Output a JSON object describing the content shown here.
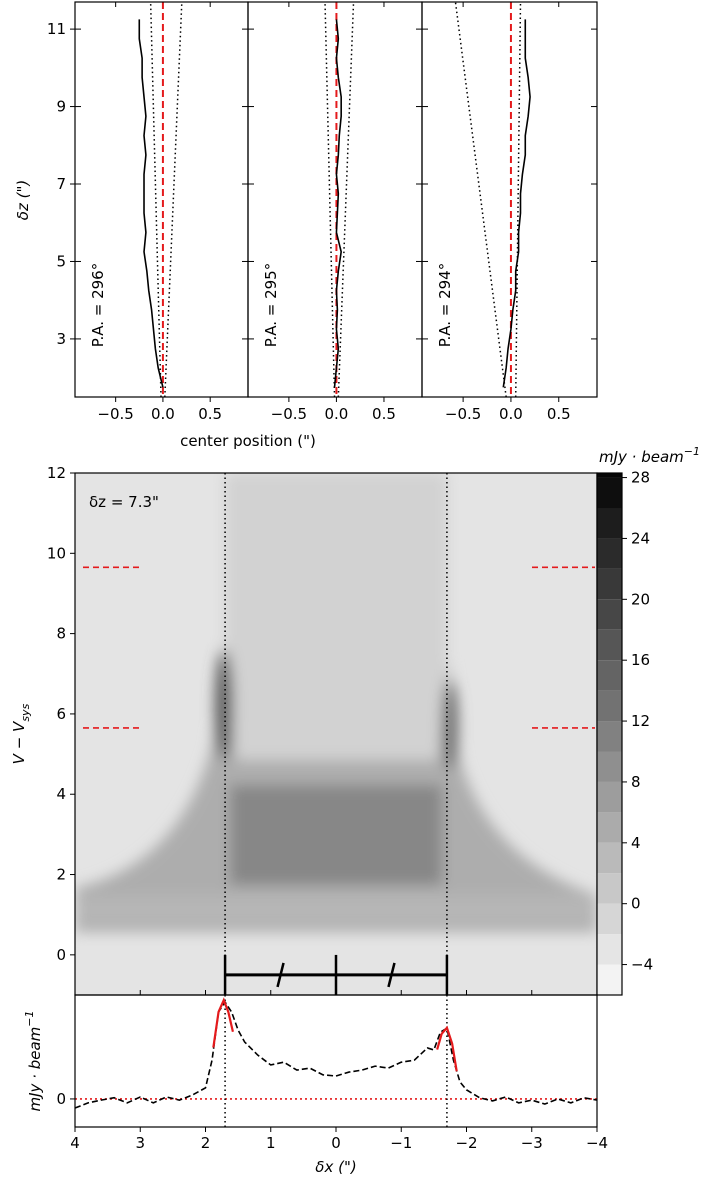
{
  "chart_data": [
    {
      "type": "line",
      "annotation": "P.A. = 296°",
      "ylabel": "δz (\")",
      "xlim": [
        -0.93,
        0.9
      ],
      "xticks": [
        {
          "value": -0.5,
          "label": "−0.5"
        },
        {
          "value": 0,
          "label": "0.0"
        },
        0.5
      ],
      "ylim": [
        1.5,
        11.7
      ],
      "yticks": [
        3,
        5,
        7,
        9,
        11
      ],
      "reference_x": 0,
      "reference_color": "#e41a1c",
      "bounds": [
        [
          -0.02,
          -0.13
        ],
        [
          0.02,
          0.2
        ]
      ],
      "series": [
        {
          "color": "#000000",
          "z": [
            1.75,
            2.25,
            2.75,
            3.25,
            3.75,
            4.25,
            4.75,
            5.25,
            5.75,
            6.25,
            6.75,
            7.25,
            7.75,
            8.25,
            8.75,
            9.25,
            9.75,
            10.25,
            10.75,
            11.25
          ],
          "values": [
            0.0,
            -0.05,
            -0.08,
            -0.1,
            -0.12,
            -0.15,
            -0.17,
            -0.2,
            -0.18,
            -0.2,
            -0.2,
            -0.2,
            -0.18,
            -0.2,
            -0.18,
            -0.2,
            -0.22,
            -0.22,
            -0.25,
            -0.25
          ]
        }
      ]
    },
    {
      "type": "line",
      "annotation": "P.A. = 295°",
      "xlabel": "center position (\")",
      "xlim": [
        -0.93,
        0.9
      ],
      "xticks": [
        {
          "value": -0.5,
          "label": "−0.5"
        },
        {
          "value": 0,
          "label": "0.0"
        },
        0.5
      ],
      "ylim": [
        1.5,
        11.7
      ],
      "reference_x": 0,
      "reference_color": "#e41a1c",
      "bounds": [
        [
          -0.02,
          -0.12
        ],
        [
          0.02,
          0.18
        ]
      ],
      "series": [
        {
          "color": "#000000",
          "z": [
            1.75,
            2.25,
            2.75,
            3.25,
            3.75,
            4.25,
            4.75,
            5.25,
            5.75,
            6.25,
            6.75,
            7.25,
            7.75,
            8.25,
            8.75,
            9.25,
            9.75,
            10.25,
            10.75,
            11.25
          ],
          "values": [
            -0.02,
            0.0,
            0.02,
            0.0,
            0.01,
            0.0,
            0.02,
            0.05,
            0.0,
            0.01,
            0.02,
            0.0,
            0.02,
            0.03,
            0.05,
            0.05,
            0.02,
            0.0,
            0.02,
            0.0
          ]
        }
      ]
    },
    {
      "type": "line",
      "annotation": "P.A. = 294°",
      "xlim": [
        -0.93,
        0.9
      ],
      "xticks": [
        {
          "value": -0.5,
          "label": "−0.5"
        },
        {
          "value": 0,
          "label": "0.0"
        },
        0.5
      ],
      "ylim": [
        1.5,
        11.7
      ],
      "reference_x": 0,
      "reference_color": "#e41a1c",
      "bounds": [
        [
          -0.05,
          -0.58
        ],
        [
          0.05,
          0.1
        ]
      ],
      "series": [
        {
          "color": "#000000",
          "z": [
            1.75,
            2.25,
            2.75,
            3.25,
            3.75,
            4.25,
            4.75,
            5.25,
            5.75,
            6.25,
            6.75,
            7.25,
            7.75,
            8.25,
            8.75,
            9.25,
            9.75,
            10.25,
            10.75,
            11.25
          ],
          "values": [
            -0.08,
            -0.05,
            -0.03,
            0.0,
            0.02,
            0.05,
            0.05,
            0.08,
            0.08,
            0.1,
            0.1,
            0.12,
            0.15,
            0.15,
            0.18,
            0.2,
            0.18,
            0.15,
            0.15,
            0.15
          ]
        }
      ]
    },
    {
      "type": "contour",
      "annotation": "δz = 7.3\"",
      "ylabel": [
        "V − V",
        "sys"
      ],
      "xlim": [
        4,
        -4
      ],
      "ylim": [
        -1,
        12
      ],
      "yticks": [
        0,
        2,
        4,
        6,
        8,
        10,
        12
      ],
      "vlines": [
        1.7,
        -1.7
      ],
      "hmarks": [
        9.65,
        5.65
      ],
      "hmark_color": "#e41a1c",
      "bar_y": -0.5,
      "colorbar": {
        "label": [
          "mJy · beam",
          "−1"
        ],
        "clim": [
          -6,
          28.3
        ],
        "levels": [
          -6,
          -4,
          -2,
          0,
          2,
          4,
          6,
          8,
          10,
          12,
          14,
          16,
          18,
          20,
          22,
          24,
          26,
          28
        ],
        "ticks": [
          {
            "value": -4,
            "label": "−4"
          },
          0,
          4,
          8,
          12,
          16,
          20,
          24,
          28
        ]
      }
    },
    {
      "type": "line",
      "ylabel": [
        "mJy · beam",
        "−1"
      ],
      "xlabel": "δx (\")",
      "xlim": [
        4,
        -4
      ],
      "ylim": [
        -7.1,
        26.3
      ],
      "yticks": [
        0
      ],
      "hline": 0,
      "hline_color": "#e41a1c",
      "vlines": [
        1.7,
        -1.7
      ],
      "xticks": [
        4,
        3,
        2,
        1,
        0,
        {
          "value": -1,
          "label": "−1"
        },
        {
          "value": -2,
          "label": "−2"
        },
        {
          "value": -3,
          "label": "−3"
        },
        {
          "value": -4,
          "label": "−4"
        }
      ],
      "series": [
        {
          "color": "#000000",
          "dash": true,
          "x": [
            4,
            3.8,
            3.6,
            3.4,
            3.2,
            3.0,
            2.8,
            2.6,
            2.4,
            2.2,
            2.0,
            1.9,
            1.8,
            1.7,
            1.6,
            1.5,
            1.4,
            1.2,
            1.0,
            0.8,
            0.6,
            0.4,
            0.2,
            0,
            -0.2,
            -0.4,
            -0.6,
            -0.8,
            -1.0,
            -1.2,
            -1.4,
            -1.5,
            -1.6,
            -1.7,
            -1.8,
            -1.9,
            -2.0,
            -2.2,
            -2.4,
            -2.6,
            -2.8,
            -3.0,
            -3.2,
            -3.4,
            -3.6,
            -3.8,
            -4
          ],
          "values": [
            -2.3,
            -1.0,
            -0.3,
            0.3,
            -1.0,
            0.5,
            -1.0,
            0.5,
            -0.3,
            1.0,
            2.8,
            9.8,
            22.0,
            24.5,
            22.0,
            17.4,
            14.4,
            11.1,
            8.6,
            9.3,
            7.3,
            7.8,
            6.1,
            5.8,
            6.8,
            7.3,
            8.3,
            7.8,
            9.3,
            9.8,
            12.9,
            12.4,
            16.9,
            17.9,
            9.8,
            4.3,
            2.3,
            0.3,
            -0.5,
            0.5,
            -1.0,
            -0.3,
            -1.3,
            0,
            -1.0,
            0.3,
            -0.3
          ]
        },
        {
          "color": "#e41a1c",
          "dash": false,
          "x": [
            1.88,
            1.8,
            1.72,
            1.65,
            1.58
          ],
          "values": [
            13,
            22,
            25,
            22,
            17
          ]
        },
        {
          "color": "#e41a1c",
          "dash": false,
          "x": [
            -1.55,
            -1.62,
            -1.7,
            -1.78,
            -1.85
          ],
          "values": [
            12.5,
            16.5,
            18,
            14,
            7
          ]
        }
      ]
    }
  ]
}
